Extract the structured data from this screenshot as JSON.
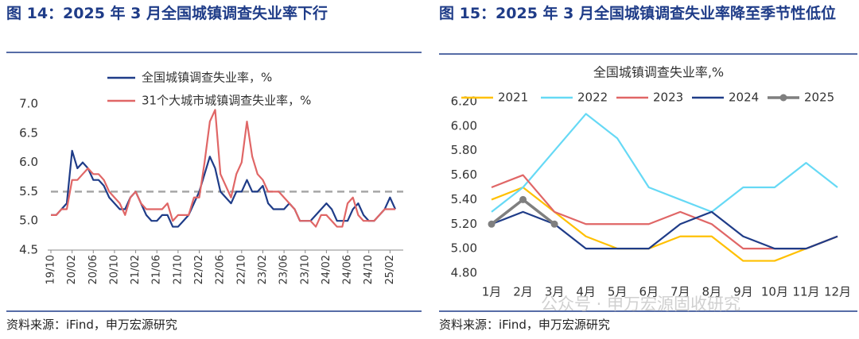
{
  "chart_data": [
    {
      "type": "line",
      "title": "图 14：2025 年 3 月全国城镇调查失业率下行",
      "source": "资料来源：iFind，申万宏源研究",
      "categories": [
        "19/10",
        null,
        null,
        null,
        "20/02",
        null,
        null,
        null,
        "20/06",
        null,
        null,
        null,
        "20/10",
        null,
        null,
        null,
        "21/02",
        null,
        null,
        null,
        "21/06",
        null,
        null,
        null,
        "21/10",
        null,
        null,
        null,
        "22/02",
        null,
        null,
        null,
        "22/06",
        null,
        null,
        null,
        "22/10",
        null,
        null,
        null,
        "23/02",
        null,
        null,
        null,
        "23/06",
        null,
        null,
        null,
        "23/10",
        null,
        null,
        null,
        "24/02",
        null,
        null,
        null,
        "24/06",
        null,
        null,
        null,
        "24/10",
        null,
        null,
        null,
        "25/02",
        null
      ],
      "series": [
        {
          "name": "全国城镇调查失业率，%",
          "color": "#1f3c88",
          "values": [
            5.1,
            5.1,
            5.2,
            5.3,
            6.2,
            5.9,
            6.0,
            5.9,
            5.7,
            5.7,
            5.6,
            5.4,
            5.3,
            5.2,
            5.2,
            5.4,
            5.5,
            5.3,
            5.1,
            5.0,
            5.0,
            5.1,
            5.1,
            4.9,
            4.9,
            5.0,
            5.1,
            5.3,
            5.5,
            5.8,
            6.1,
            5.9,
            5.5,
            5.4,
            5.3,
            5.5,
            5.5,
            5.7,
            5.5,
            5.5,
            5.6,
            5.3,
            5.2,
            5.2,
            5.2,
            5.3,
            5.2,
            5.0,
            5.0,
            5.0,
            5.1,
            5.2,
            5.3,
            5.2,
            5.0,
            5.0,
            5.0,
            5.2,
            5.3,
            5.1,
            5.0,
            5.0,
            5.1,
            5.2,
            5.4,
            5.2
          ]
        },
        {
          "name": "31个大城市城镇调查失业率，%",
          "color": "#e06666",
          "values": [
            5.1,
            5.1,
            5.2,
            5.2,
            5.7,
            5.7,
            5.8,
            5.9,
            5.8,
            5.8,
            5.7,
            5.5,
            5.4,
            5.3,
            5.1,
            5.4,
            5.5,
            5.3,
            5.2,
            5.2,
            5.2,
            5.2,
            5.3,
            5.0,
            5.1,
            5.1,
            5.1,
            5.4,
            5.4,
            6.0,
            6.7,
            6.9,
            5.8,
            5.6,
            5.4,
            5.8,
            6.0,
            6.7,
            6.1,
            5.8,
            5.7,
            5.5,
            5.5,
            5.5,
            5.4,
            5.3,
            5.2,
            5.0,
            5.0,
            5.0,
            4.9,
            5.1,
            5.1,
            5.0,
            4.9,
            4.9,
            5.3,
            5.4,
            5.1,
            5.0,
            5.0,
            5.0,
            5.1,
            5.2,
            5.2,
            5.2
          ]
        }
      ],
      "reference_line": 5.5,
      "reference_color": "#a6a6a6",
      "ylim": [
        4.5,
        7.0
      ],
      "yticks": [
        4.5,
        {
          "value": 5.0,
          "label": "5.0"
        },
        5.5,
        {
          "value": 6.0,
          "label": "6.0"
        },
        6.5,
        {
          "value": 7.0,
          "label": "7.0"
        }
      ]
    },
    {
      "type": "line",
      "title": "图 15：2025 年 3 月全国城镇调查失业率降至季节性低位",
      "source": "资料来源：iFind，申万宏源研究",
      "subtitle": "全国城镇调查失业率,%",
      "watermark": "公众号 · 申万宏源固收研究",
      "categories": [
        "1月",
        "2月",
        "3月",
        "4月",
        "5月",
        "6月",
        "7月",
        "8月",
        "9月",
        "10月",
        "11月",
        "12月"
      ],
      "series": [
        {
          "name": "2021",
          "color": "#ffc000",
          "values": [
            5.4,
            5.5,
            5.3,
            5.1,
            5.0,
            5.0,
            5.1,
            5.1,
            4.9,
            4.9,
            5.0,
            5.1
          ]
        },
        {
          "name": "2022",
          "color": "#66d9f5",
          "values": [
            5.3,
            5.5,
            5.8,
            6.1,
            5.9,
            5.5,
            5.4,
            5.3,
            5.5,
            5.5,
            5.7,
            5.5
          ]
        },
        {
          "name": "2023",
          "color": "#e06666",
          "values": [
            5.5,
            5.6,
            5.3,
            5.2,
            5.2,
            5.2,
            5.3,
            5.2,
            5.0,
            5.0,
            5.0,
            5.1
          ]
        },
        {
          "name": "2024",
          "color": "#1f3c88",
          "values": [
            5.2,
            5.3,
            5.2,
            5.0,
            5.0,
            5.0,
            5.2,
            5.3,
            5.1,
            5.0,
            5.0,
            5.1
          ]
        },
        {
          "name": "2025",
          "color": "#7f7f7f",
          "marker": true,
          "values": [
            5.2,
            5.4,
            5.2,
            null,
            null,
            null,
            null,
            null,
            null,
            null,
            null,
            null
          ]
        }
      ],
      "ylim": [
        4.8,
        6.2
      ],
      "yticks": [
        {
          "value": 4.8,
          "label": "4.80"
        },
        {
          "value": 5.0,
          "label": "5.00"
        },
        {
          "value": 5.2,
          "label": "5.20"
        },
        {
          "value": 5.4,
          "label": "5.40"
        },
        {
          "value": 5.6,
          "label": "5.60"
        },
        {
          "value": 5.8,
          "label": "5.80"
        },
        {
          "value": 6.0,
          "label": "6.00"
        },
        {
          "value": 6.2,
          "label": "6.20"
        }
      ]
    }
  ]
}
